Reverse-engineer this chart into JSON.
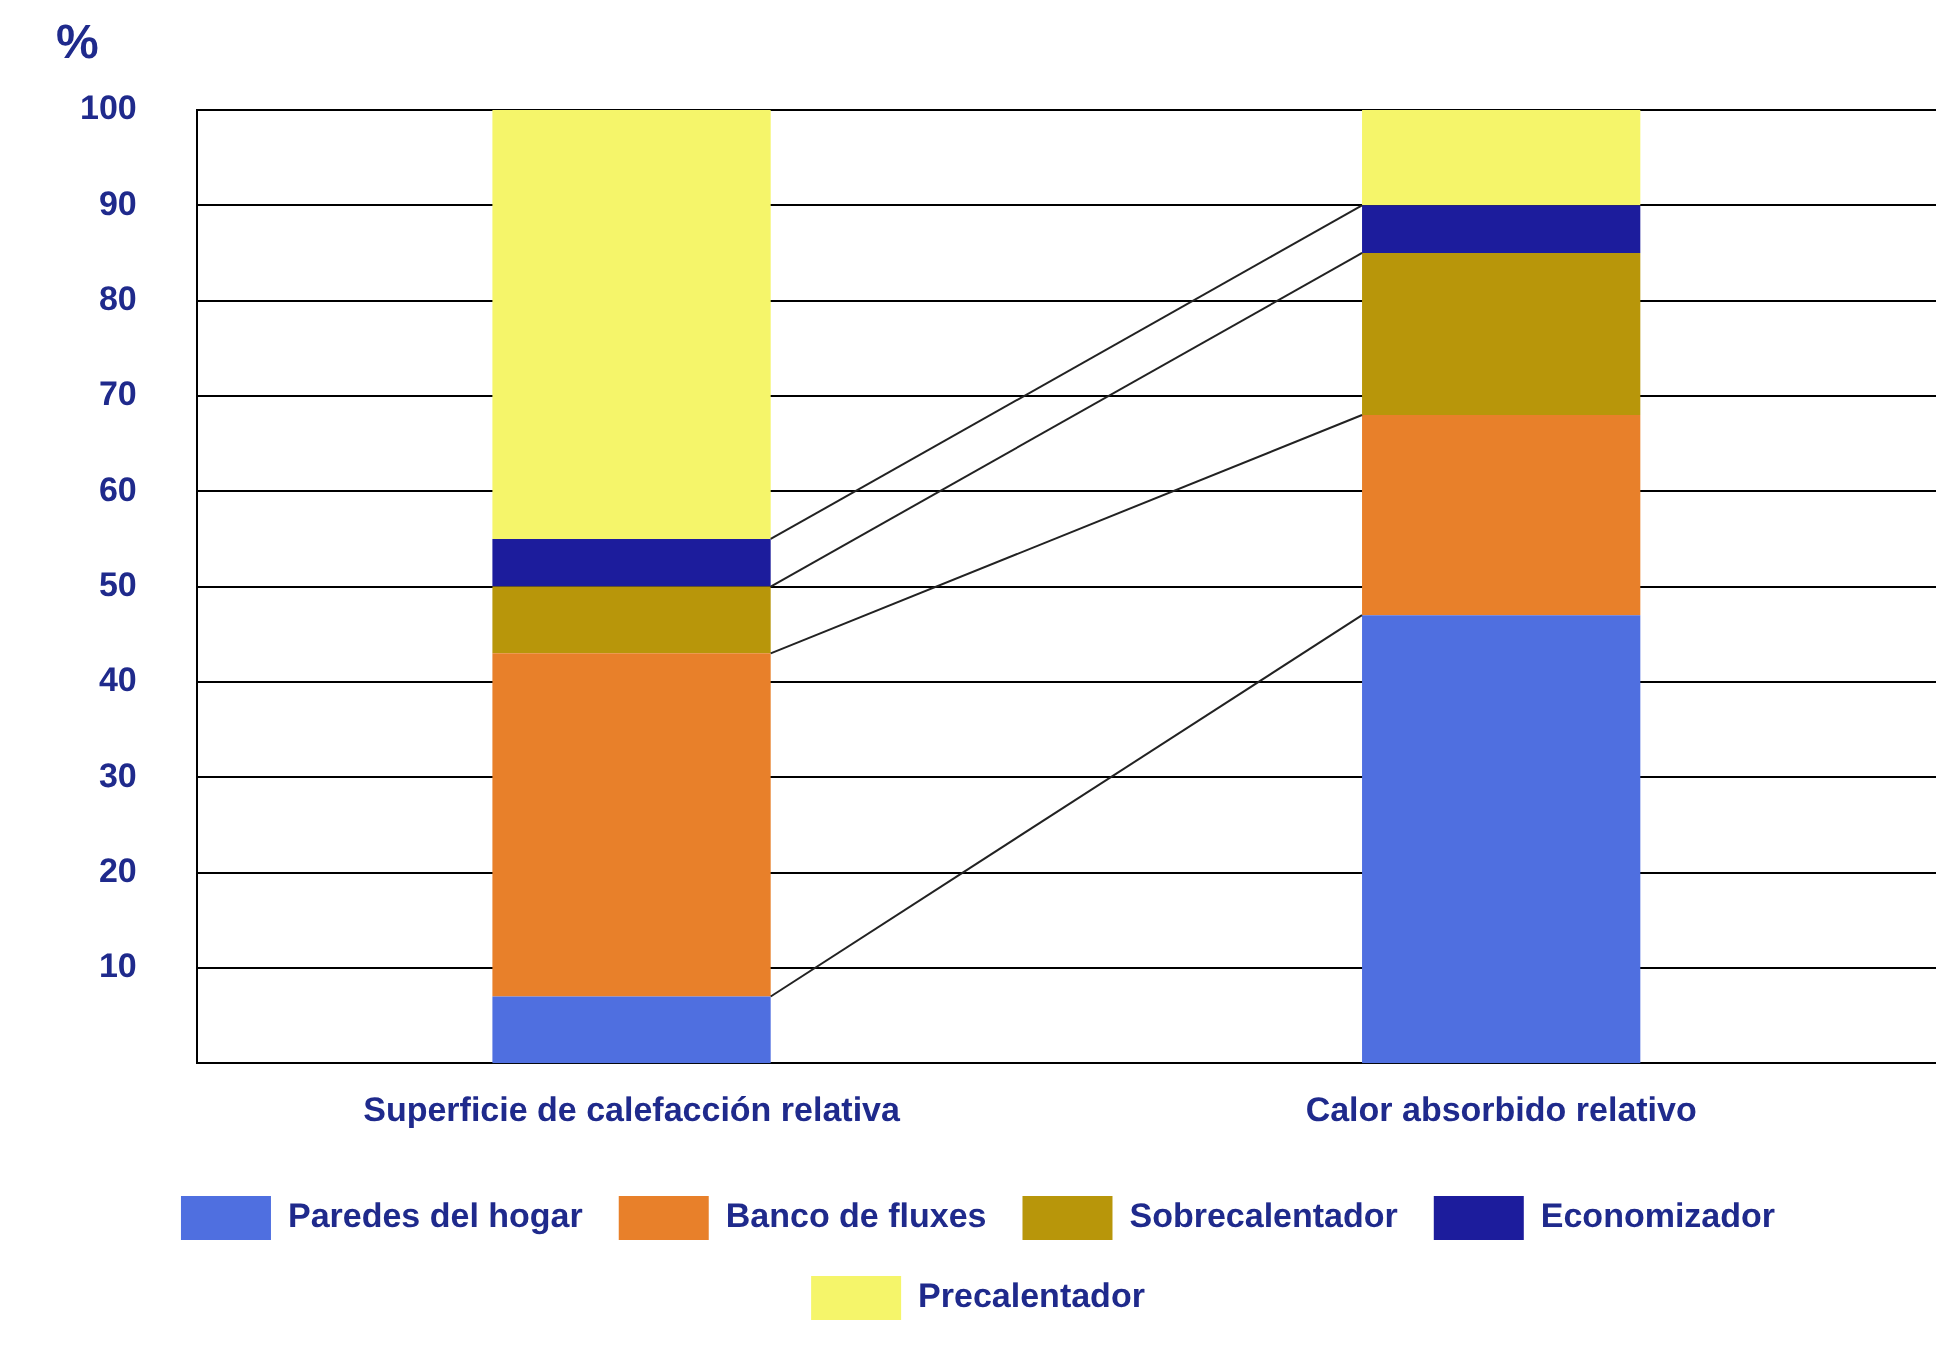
{
  "chart_data": {
    "type": "bar",
    "stacked": true,
    "ylabel": "%",
    "categories": [
      "Superficie de calefacción relativa",
      "Calor absorbido relativo"
    ],
    "series": [
      {
        "name": "Paredes del hogar",
        "color": "#4f6fe0",
        "values": [
          7,
          47
        ]
      },
      {
        "name": "Banco de fluxes",
        "color": "#e8802a",
        "values": [
          36,
          21
        ]
      },
      {
        "name": "Sobrecalentador",
        "color": "#b8960a",
        "values": [
          7,
          17
        ]
      },
      {
        "name": "Economizador",
        "color": "#1c1c9c",
        "values": [
          5,
          5
        ]
      },
      {
        "name": "Precalentador",
        "color": "#f5f56a",
        "values": [
          45,
          10
        ]
      }
    ],
    "ylim": [
      0,
      100
    ],
    "yticks": [
      10,
      20,
      30,
      40,
      50,
      60,
      70,
      80,
      90,
      100
    ],
    "grid": "y",
    "legend": "bottom"
  }
}
